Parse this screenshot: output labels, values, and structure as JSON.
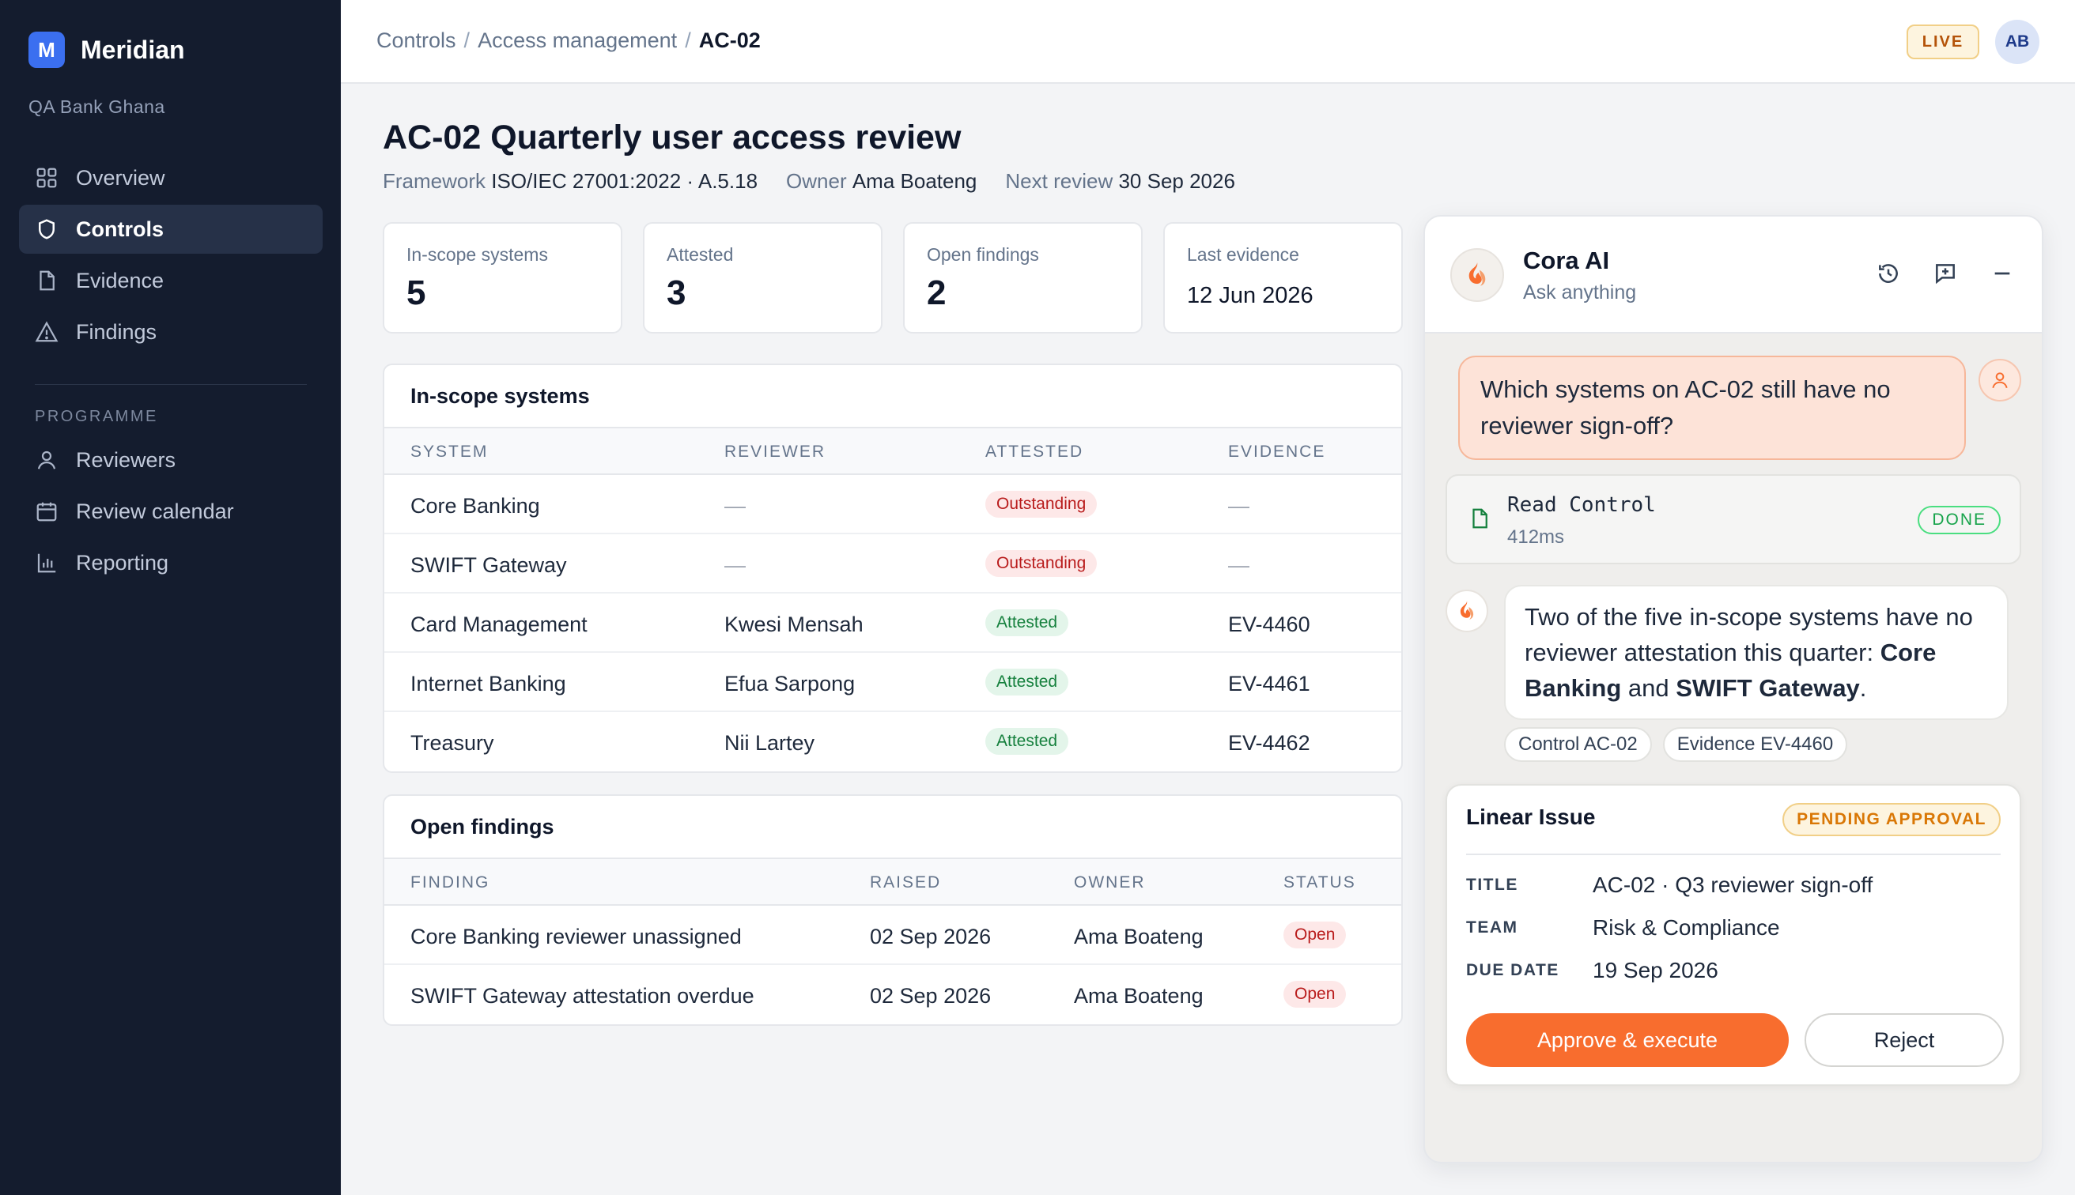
{
  "app": {
    "brand_initial": "M",
    "brand_name": "Meridian",
    "org": "QA Bank Ghana"
  },
  "sidebar": {
    "items": [
      {
        "label": "Overview",
        "icon": "grid-icon"
      },
      {
        "label": "Controls",
        "icon": "shield-icon",
        "active": true
      },
      {
        "label": "Evidence",
        "icon": "file-icon"
      },
      {
        "label": "Findings",
        "icon": "warning-icon"
      }
    ],
    "section_label": "PROGRAMME",
    "programme_items": [
      {
        "label": "Reviewers",
        "icon": "user-icon"
      },
      {
        "label": "Review calendar",
        "icon": "calendar-icon"
      },
      {
        "label": "Reporting",
        "icon": "bar-chart-icon"
      }
    ]
  },
  "topbar": {
    "breadcrumb": [
      "Controls",
      "Access management",
      "AC-02"
    ],
    "separator": "/",
    "live_badge": "LIVE",
    "avatar_initials": "AB"
  },
  "header": {
    "title": "AC-02 Quarterly user access review",
    "framework_label": "Framework",
    "framework_value": "ISO/IEC 27001:2022 · A.5.18",
    "owner_label": "Owner",
    "owner_value": "Ama Boateng",
    "next_review_label": "Next review",
    "next_review_value": "30 Sep 2026"
  },
  "stats": [
    {
      "label": "In-scope systems",
      "value": "5"
    },
    {
      "label": "Attested",
      "value": "3"
    },
    {
      "label": "Open findings",
      "value": "2"
    },
    {
      "label": "Last evidence",
      "value": "12 Jun 2026"
    }
  ],
  "systems_table": {
    "title": "In-scope systems",
    "columns": [
      "SYSTEM",
      "REVIEWER",
      "ATTESTED",
      "EVIDENCE"
    ],
    "rows": [
      {
        "system": "Core Banking",
        "reviewer": "—",
        "attested": "Outstanding",
        "status": "outstanding",
        "evidence": "—"
      },
      {
        "system": "SWIFT Gateway",
        "reviewer": "—",
        "attested": "Outstanding",
        "status": "outstanding",
        "evidence": "—"
      },
      {
        "system": "Card Management",
        "reviewer": "Kwesi Mensah",
        "attested": "Attested",
        "status": "attested",
        "evidence": "EV-4460"
      },
      {
        "system": "Internet Banking",
        "reviewer": "Efua Sarpong",
        "attested": "Attested",
        "status": "attested",
        "evidence": "EV-4461"
      },
      {
        "system": "Treasury",
        "reviewer": "Nii Lartey",
        "attested": "Attested",
        "status": "attested",
        "evidence": "EV-4462"
      }
    ]
  },
  "findings_table": {
    "title": "Open findings",
    "columns": [
      "FINDING",
      "RAISED",
      "OWNER",
      "STATUS"
    ],
    "rows": [
      {
        "finding": "Core Banking reviewer unassigned",
        "raised": "02 Sep 2026",
        "owner": "Ama Boateng",
        "status": "Open"
      },
      {
        "finding": "SWIFT Gateway attestation overdue",
        "raised": "02 Sep 2026",
        "owner": "Ama Boateng",
        "status": "Open"
      }
    ]
  },
  "assistant": {
    "name": "Cora AI",
    "subtitle": "Ask anything",
    "user_message": "Which systems on AC-02 still have no reviewer sign-off?",
    "tool": {
      "name": "Read Control",
      "duration": "412ms",
      "status": "DONE"
    },
    "reply_prefix": "Two of the five in-scope systems have no reviewer attestation this quarter: ",
    "reply_bold_1": "Core Banking",
    "reply_mid": " and ",
    "reply_bold_2": "SWIFT Gateway",
    "reply_suffix": ".",
    "citations": [
      "Control AC-02",
      "Evidence EV-4460"
    ],
    "approval": {
      "title": "Linear Issue",
      "badge": "PENDING APPROVAL",
      "fields": [
        {
          "key": "TITLE",
          "value": "AC-02 · Q3 reviewer sign-off"
        },
        {
          "key": "TEAM",
          "value": "Risk & Compliance"
        },
        {
          "key": "DUE DATE",
          "value": "19 Sep 2026"
        }
      ],
      "approve_label": "Approve & execute",
      "reject_label": "Reject"
    }
  },
  "colors": {
    "sidebar_bg": "#141c2e",
    "brand_accent": "#3b6ff0",
    "assistant_accent": "#f86d2e",
    "attested": "#15803d",
    "outstanding": "#b91c1c",
    "pending": "#d97706"
  }
}
